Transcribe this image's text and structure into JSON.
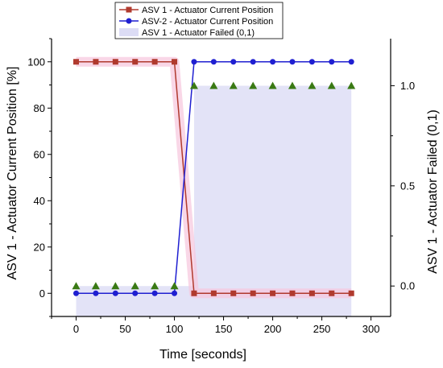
{
  "chart_data": {
    "type": "line",
    "title": "",
    "xlabel": "Time [seconds]",
    "ylabel_left": "ASV 1 - Actuator Current Position [%]",
    "ylabel_right": "ASV 1 - Actuator Failed (0,1)",
    "xlim": [
      -25,
      320
    ],
    "ylim_left": [
      -10,
      110
    ],
    "ylim_right": [
      -0.152,
      1.235
    ],
    "x_ticks": [
      0,
      50,
      100,
      150,
      200,
      250,
      300
    ],
    "x_tick_labels": [
      "0",
      "50",
      "100",
      "150",
      "200",
      "250",
      "300"
    ],
    "y_left_ticks": [
      0,
      20,
      40,
      60,
      80,
      100
    ],
    "y_left_tick_labels": [
      "0",
      "20",
      "40",
      "60",
      "80",
      "100"
    ],
    "y_right_ticks": [
      0.0,
      0.5,
      1.0
    ],
    "y_right_tick_labels": [
      "0.0",
      "0.5",
      "1.0"
    ],
    "grid": false,
    "legend_position": "top-center",
    "series": [
      {
        "name": "ASV 1 - Actuator Current Position",
        "axis": "left",
        "marker": "square",
        "color": "#b03a2e",
        "x": [
          0,
          20,
          40,
          60,
          80,
          100,
          120,
          140,
          160,
          180,
          200,
          220,
          240,
          260,
          280
        ],
        "y": [
          100,
          100,
          100,
          100,
          100,
          100,
          0,
          0,
          0,
          0,
          0,
          0,
          0,
          0,
          0
        ]
      },
      {
        "name": "ASV-2 - Actuator Current Position",
        "axis": "left",
        "marker": "circle",
        "color": "#1f1fd1",
        "x": [
          0,
          20,
          40,
          60,
          80,
          100,
          120,
          140,
          160,
          180,
          200,
          220,
          240,
          260,
          280
        ],
        "y": [
          0,
          0,
          0,
          0,
          0,
          0,
          100,
          100,
          100,
          100,
          100,
          100,
          100,
          100,
          100
        ]
      },
      {
        "name": "ASV 1 - Actuator Failed (0,1)",
        "axis": "right",
        "type": "area",
        "marker": "triangle",
        "color": "#dcdcf5",
        "marker_color": "#3a7a14",
        "x": [
          0,
          20,
          40,
          60,
          80,
          100,
          120,
          140,
          160,
          180,
          200,
          220,
          240,
          260,
          280
        ],
        "y": [
          0,
          0,
          0,
          0,
          0,
          0,
          1,
          1,
          1,
          1,
          1,
          1,
          1,
          1,
          1
        ]
      }
    ],
    "colors": {
      "pink_highlight": "#f6c6dd",
      "axis": "#000000"
    }
  }
}
